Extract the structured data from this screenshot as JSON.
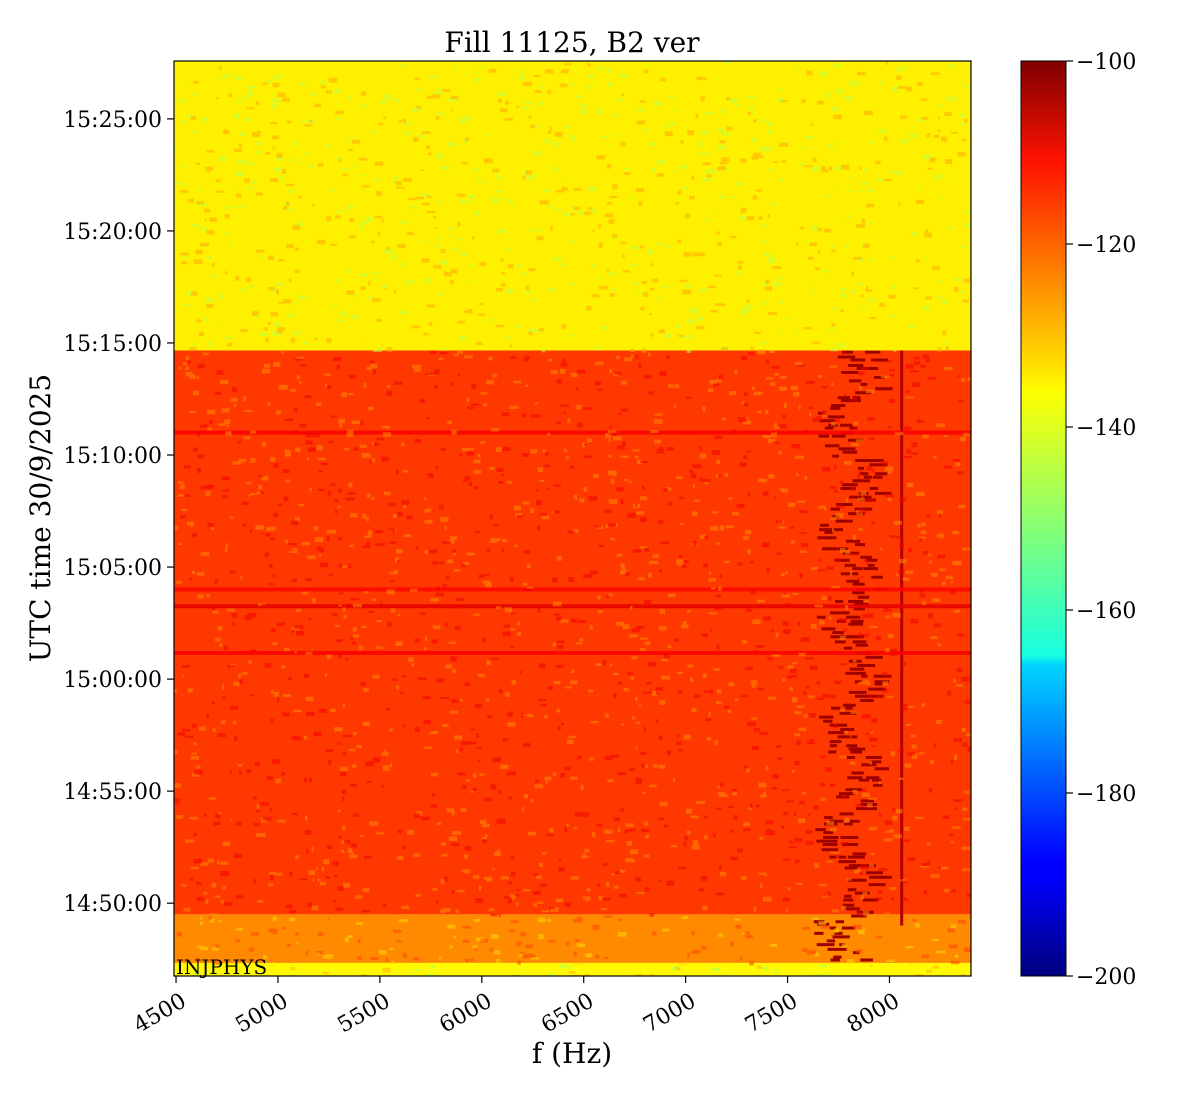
{
  "chart_data": {
    "type": "heatmap",
    "title": "Fill 11125, B2 ver",
    "xlabel": "f (Hz)",
    "ylabel": "UTC time 30/9/2025",
    "xlim": [
      4490,
      8400
    ],
    "ylim_time": [
      "14:46:45",
      "15:27:35"
    ],
    "x_ticks": [
      4500,
      5000,
      5500,
      6000,
      6500,
      7000,
      7500,
      8000
    ],
    "y_ticks": [
      {
        "time": "14:50:00",
        "label": "14:50:00"
      },
      {
        "time": "14:55:00",
        "label": "14:55:00"
      },
      {
        "time": "15:00:00",
        "label": "15:00:00"
      },
      {
        "time": "15:05:00",
        "label": "15:05:00"
      },
      {
        "time": "15:10:00",
        "label": "15:10:00"
      },
      {
        "time": "15:15:00",
        "label": "15:15:00"
      },
      {
        "time": "15:20:00",
        "label": "15:20:00"
      },
      {
        "time": "15:25:00",
        "label": "15:25:00"
      }
    ],
    "colorbar": {
      "colormap": "jet",
      "min": -200,
      "max": -100,
      "ticks": [
        -100,
        -120,
        -140,
        -160,
        -180,
        -200
      ],
      "tick_labels": [
        "−100",
        "−120",
        "−140",
        "−160",
        "−180",
        "−200"
      ]
    },
    "regions": [
      {
        "time_start": "14:46:45",
        "time_end": "14:47:20",
        "level_db": -137
      },
      {
        "time_start": "14:47:20",
        "time_end": "14:49:30",
        "level_db": -126
      },
      {
        "time_start": "14:49:30",
        "time_end": "15:14:40",
        "level_db": -118
      },
      {
        "time_start": "15:14:40",
        "time_end": "15:27:35",
        "level_db": -136
      }
    ],
    "features": [
      {
        "kind": "line",
        "f_hz": 8060,
        "time_start": "14:49:00",
        "time_end": "15:14:40",
        "level_db": -105
      },
      {
        "kind": "band",
        "f_start_hz": 7590,
        "f_end_hz": 7980,
        "time_start": "14:47:20",
        "time_end": "15:14:40",
        "level_db": -103
      },
      {
        "kind": "row",
        "time": "15:03:15",
        "level_db": -110
      },
      {
        "kind": "row",
        "time": "15:01:10",
        "level_db": -112
      },
      {
        "kind": "row",
        "time": "15:04:00",
        "level_db": -113
      },
      {
        "kind": "row",
        "time": "15:11:00",
        "level_db": -112
      }
    ],
    "annotations": [
      "INJPHYS"
    ],
    "grid": false,
    "legend": "none"
  }
}
